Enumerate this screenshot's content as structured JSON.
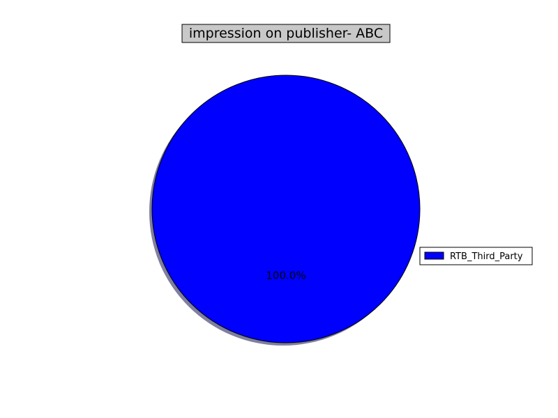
{
  "chart_data": {
    "type": "pie",
    "title": "impression on publisher- ABC",
    "slices": [
      {
        "label": "RTB_Third_Party",
        "value": 100.0,
        "percent_label": "100.0%",
        "color": "#0000ff"
      }
    ],
    "shadow": true,
    "legend_position": "right",
    "colors": {
      "title_box_fill": "#c8c8c8",
      "edge": "#000000",
      "shadow": "#7f7f9f"
    }
  }
}
